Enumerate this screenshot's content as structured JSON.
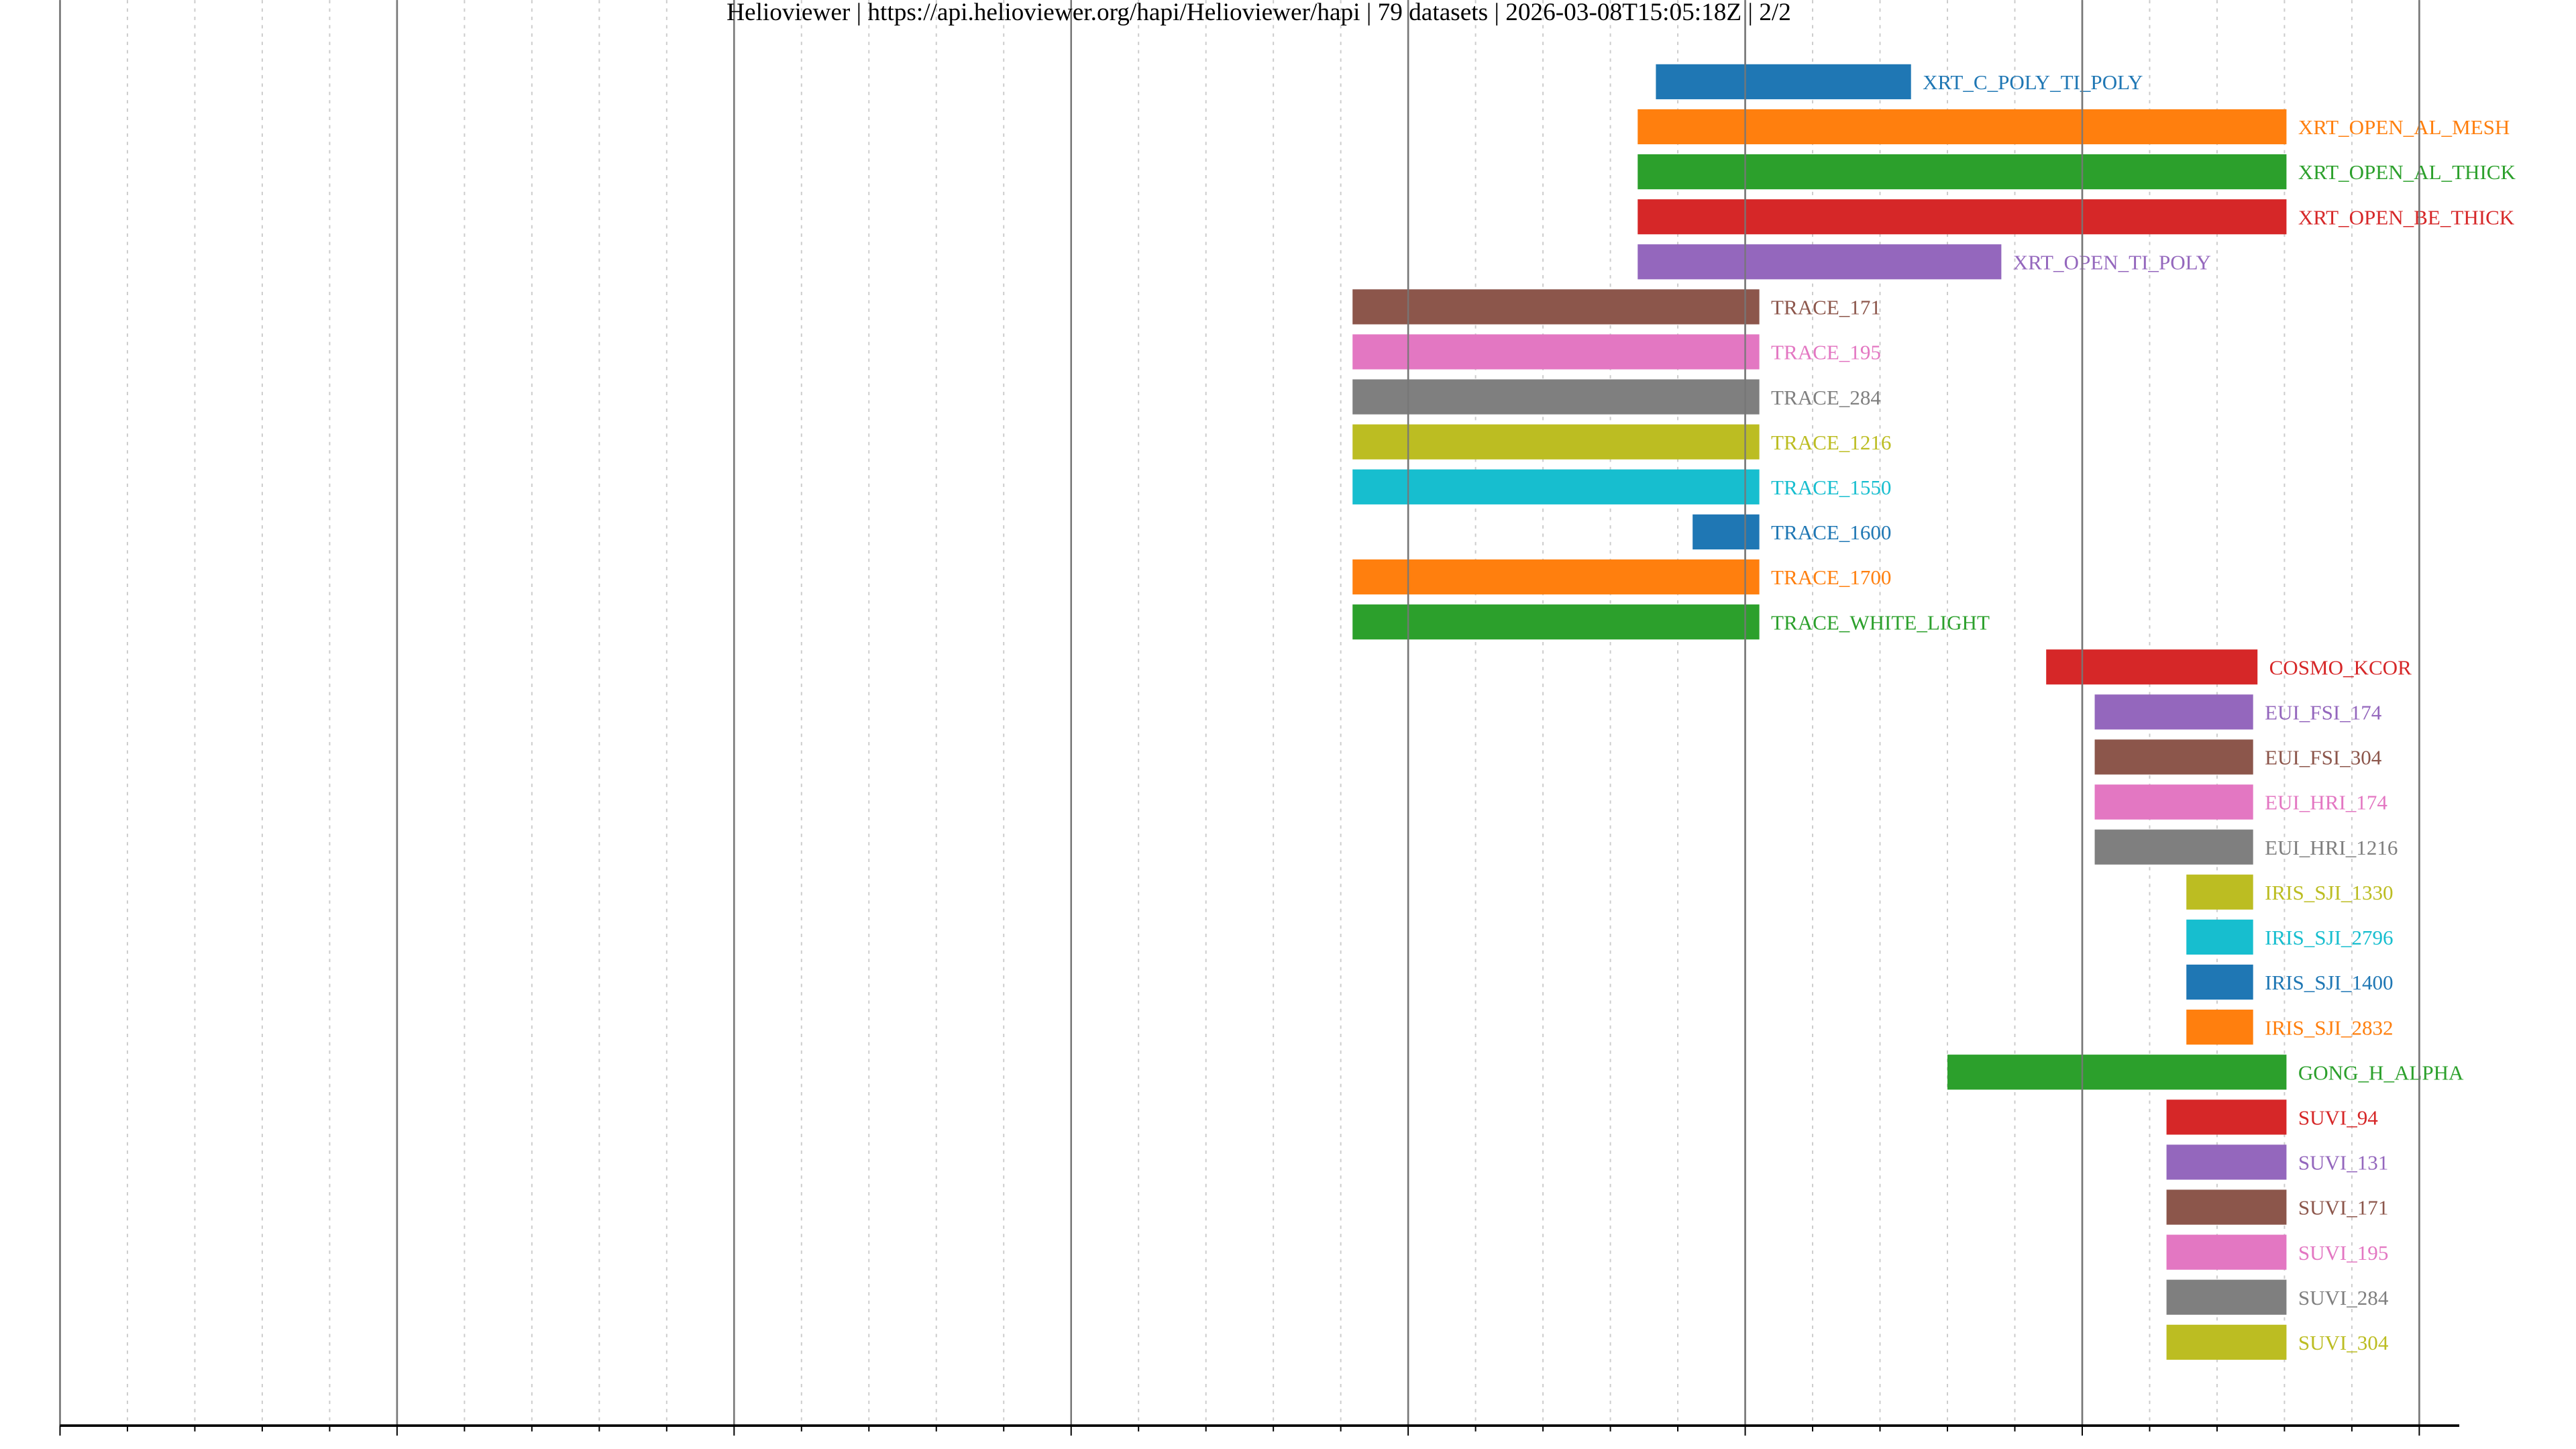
{
  "chart_data": {
    "type": "bar",
    "orientation": "horizontal-timeline",
    "title": "Helioviewer | https://api.helioviewer.org/hapi/Helioviewer/hapi | 79 datasets | 2026-03-08T15:05:18Z | 2/2",
    "xlabel": "",
    "ylabel": "",
    "xlim": [
      1960,
      2031.2
    ],
    "x_ticks": [
      "1960",
      "1970",
      "1980",
      "1990",
      "2000",
      "2010",
      "2020",
      "2030"
    ],
    "grid": "major every 10 years (solid), minor every 2 years (dotted)",
    "colors": [
      "#1f77b4",
      "#ff7f0e",
      "#2ca02c",
      "#d62728",
      "#9467bd",
      "#8c564b",
      "#e377c2",
      "#7f7f7f",
      "#bcbd22",
      "#17becf"
    ],
    "series": [
      {
        "name": "XRT_C_POLY_TI_POLY",
        "start": 2007.35,
        "end": 2014.92
      },
      {
        "name": "XRT_OPEN_AL_MESH",
        "start": 2006.81,
        "end": 2026.06
      },
      {
        "name": "XRT_OPEN_AL_THICK",
        "start": 2006.81,
        "end": 2026.06
      },
      {
        "name": "XRT_OPEN_BE_THICK",
        "start": 2006.81,
        "end": 2026.06
      },
      {
        "name": "XRT_OPEN_TI_POLY",
        "start": 2006.81,
        "end": 2017.6
      },
      {
        "name": "TRACE_171",
        "start": 1998.35,
        "end": 2010.42
      },
      {
        "name": "TRACE_195",
        "start": 1998.35,
        "end": 2010.42
      },
      {
        "name": "TRACE_284",
        "start": 1998.35,
        "end": 2010.42
      },
      {
        "name": "TRACE_1216",
        "start": 1998.35,
        "end": 2010.42
      },
      {
        "name": "TRACE_1550",
        "start": 1998.35,
        "end": 2010.42
      },
      {
        "name": "TRACE_1600",
        "start": 2008.44,
        "end": 2010.42
      },
      {
        "name": "TRACE_1700",
        "start": 1998.35,
        "end": 2010.42
      },
      {
        "name": "TRACE_WHITE_LIGHT",
        "start": 1998.35,
        "end": 2010.42
      },
      {
        "name": "COSMO_KCOR",
        "start": 2018.93,
        "end": 2025.2
      },
      {
        "name": "EUI_FSI_174",
        "start": 2020.37,
        "end": 2025.07
      },
      {
        "name": "EUI_FSI_304",
        "start": 2020.37,
        "end": 2025.07
      },
      {
        "name": "EUI_HRI_174",
        "start": 2020.37,
        "end": 2025.07
      },
      {
        "name": "EUI_HRI_1216",
        "start": 2020.37,
        "end": 2025.07
      },
      {
        "name": "IRIS_SJI_1330",
        "start": 2023.09,
        "end": 2025.07
      },
      {
        "name": "IRIS_SJI_2796",
        "start": 2023.09,
        "end": 2025.07
      },
      {
        "name": "IRIS_SJI_1400",
        "start": 2023.09,
        "end": 2025.07
      },
      {
        "name": "IRIS_SJI_2832",
        "start": 2023.09,
        "end": 2025.07
      },
      {
        "name": "GONG_H_ALPHA",
        "start": 2016.0,
        "end": 2026.06
      },
      {
        "name": "SUVI_94",
        "start": 2022.5,
        "end": 2026.06
      },
      {
        "name": "SUVI_131",
        "start": 2022.5,
        "end": 2026.06
      },
      {
        "name": "SUVI_171",
        "start": 2022.5,
        "end": 2026.06
      },
      {
        "name": "SUVI_195",
        "start": 2022.5,
        "end": 2026.06
      },
      {
        "name": "SUVI_284",
        "start": 2022.5,
        "end": 2026.06
      },
      {
        "name": "SUVI_304",
        "start": 2022.5,
        "end": 2026.06
      }
    ]
  }
}
